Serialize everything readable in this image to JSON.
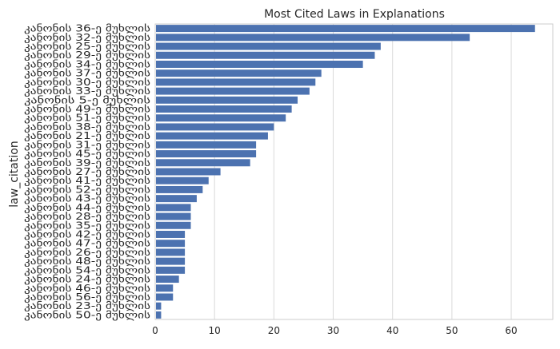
{
  "chart_data": {
    "type": "bar",
    "orientation": "horizontal",
    "title": "Most Cited Laws in Explanations",
    "xlabel": "",
    "ylabel": "law_citation",
    "xlim": [
      0,
      67
    ],
    "xticks": [
      "0",
      "10",
      "20",
      "30",
      "40",
      "50",
      "60"
    ],
    "grid": "vertical",
    "bar_color": "#4c72b0",
    "categories": [
      "კანონის 36-ე მუხლის",
      "კანონის 32-ე მუხლის",
      "კანონის 25-ე მუხლის",
      "კანონის 29-ე მუხლის",
      "კანონის 34-ე მუხლის",
      "კანონის 37-ე მუხლის",
      "კანონის 30-ე მუხლის",
      "კანონის 33-ე მუხლის",
      "კანონის 5-ე მუხლის",
      "კანონის 49-ე მუხლის",
      "კანონის 51-ე მუხლის",
      "კანონის 38-ე მუხლის",
      "კანონის 21-ე მუხლის",
      "კანონის 31-ე მუხლის",
      "კანონის 45-ე მუხლის",
      "კანონის 39-ე მუხლის",
      "კანონის 27-ე მუხლის",
      "კანონის 41-ე მუხლის",
      "კანონის 52-ე მუხლის",
      "კანონის 43-ე მუხლის",
      "კანონის 44-ე მუხლის",
      "კანონის 28-ე მუხლის",
      "კანონის 35-ე მუხლის",
      "კანონის 42-ე მუხლის",
      "კანონის 47-ე მუხლის",
      "კანონის 26-ე მუხლის",
      "კანონის 48-ე მუხლის",
      "კანონის 54-ე მუხლის",
      "კანონის 24-ე მუხლის",
      "კანონის 46-ე მუხლის",
      "კანონის 56-ე მუხლის",
      "კანონის 23-ე მუხლის",
      "კანონის 50-ე მუხლის"
    ],
    "values": [
      64,
      53,
      38,
      37,
      35,
      28,
      27,
      26,
      24,
      23,
      22,
      20,
      19,
      17,
      17,
      16,
      11,
      9,
      8,
      7,
      6,
      6,
      6,
      5,
      5,
      5,
      5,
      5,
      4,
      3,
      3,
      1,
      1
    ]
  }
}
